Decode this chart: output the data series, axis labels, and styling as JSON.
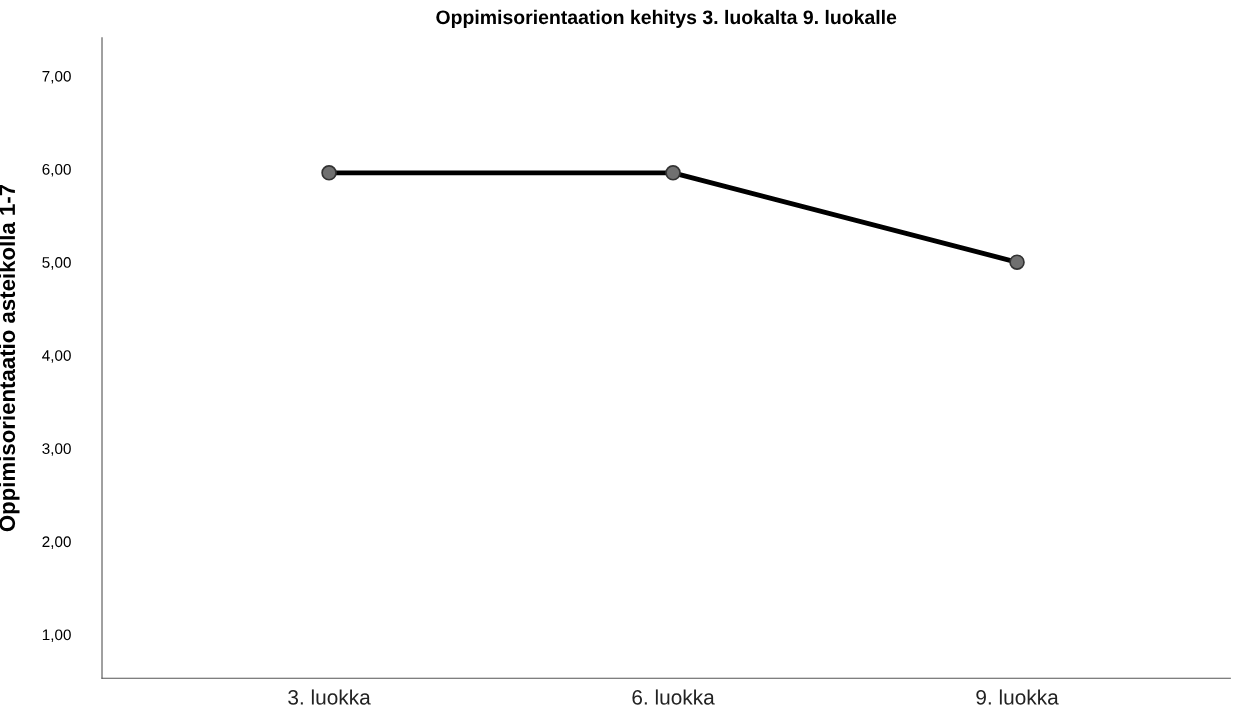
{
  "chart_data": {
    "type": "line",
    "title": "Oppimisorientaation kehitys 3. luokalta 9. luokalle",
    "ylabel": "Oppimisorientaatio asteikolla 1-7",
    "categories": [
      "3. luokka",
      "6. luokka",
      "9. luokka"
    ],
    "series": [
      {
        "color": "#000000",
        "values": [
          5.96,
          5.96,
          5.0
        ]
      }
    ],
    "ylim": [
      0.53,
      7.41
    ],
    "yticks": [
      {
        "value": 1,
        "label": "1,00"
      },
      {
        "value": 2,
        "label": "2,00"
      },
      {
        "value": 3,
        "label": "3,00"
      },
      {
        "value": 4,
        "label": "4,00"
      },
      {
        "value": 5,
        "label": "5,00"
      },
      {
        "value": 6,
        "label": "6,00"
      },
      {
        "value": 7,
        "label": "7,00"
      }
    ],
    "grid": false,
    "legend": false,
    "marker": "circle",
    "line_style": "solid"
  }
}
